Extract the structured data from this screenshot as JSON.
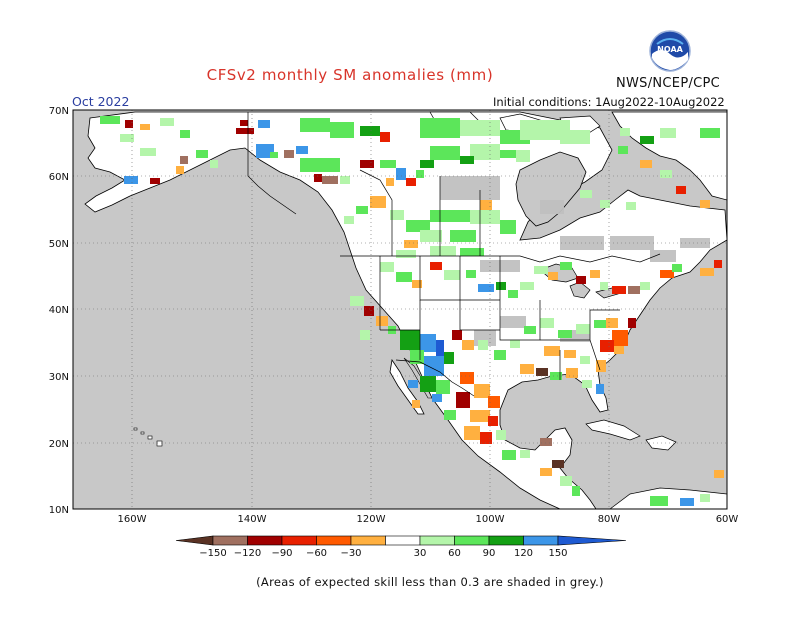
{
  "header": {
    "title": "CFSv2 monthly SM anomalies (mm)",
    "month": "Oct 2022",
    "initial_conditions": "Initial conditions: 1Aug2022-10Aug2022",
    "agency": "NWS/NCEP/CPC",
    "logo_text": "NOAA"
  },
  "map": {
    "lon_labels": [
      "160W",
      "140W",
      "120W",
      "100W",
      "80W",
      "60W"
    ],
    "lat_labels": [
      "70N",
      "60N",
      "50N",
      "40N",
      "30N",
      "20N",
      "10N"
    ],
    "colors": {
      "ocean": "#c8c8c8",
      "land": "#ffffff",
      "low_skill": "#c0c0c0",
      "coast": "#000000",
      "grid": "#777777"
    }
  },
  "colorbar": {
    "ticks": [
      "−150",
      "−120",
      "−90",
      "−60",
      "−30",
      "30",
      "60",
      "90",
      "120",
      "150"
    ],
    "colors": [
      "#5a3224",
      "#a07060",
      "#a00000",
      "#e82000",
      "#ff5a00",
      "#ffb040",
      "#ffffff",
      "#b4f5aa",
      "#5ce65a",
      "#14a014",
      "#3c96e8",
      "#1e5ad2"
    ]
  },
  "footnote": "(Areas of expected skill less than 0.3 are shaded in grey.)"
}
